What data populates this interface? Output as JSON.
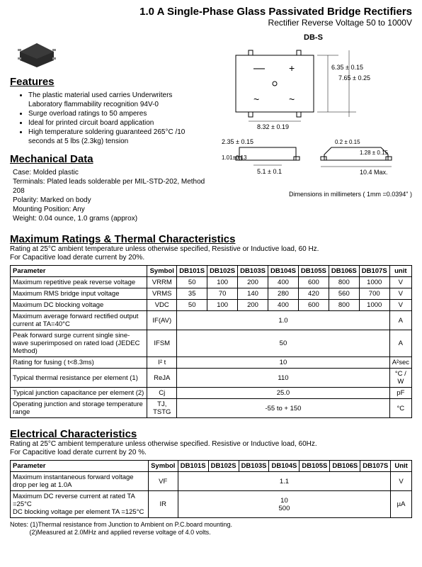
{
  "title": {
    "line1": "1.0  A Single-Phase Glass Passivated Bridge Rectifiers",
    "line2": "Rectifier Reverse Voltage 50 to 1000V"
  },
  "package_label": "DB-S",
  "features": {
    "heading": "Features",
    "items": [
      "The plastic material used carries Underwriters Laboratory flammability recognition 94V-0",
      "Surge overload ratings to 50 amperes",
      "Ideal for printed circuit board application",
      "High temperature soldering guaranteed 265°C /10 seconds at 5 lbs (2.3kg) tension"
    ]
  },
  "mechanical": {
    "heading": "Mechanical Data",
    "case": "Case: Molded plastic",
    "terminals": "Terminals: Plated leads solderable per MIL-STD-202, Method 208",
    "polarity": "Polarity: Marked on body",
    "mounting": "Mounting Position: Any",
    "weight": "Weight: 0.04 ounce, 1.0 grams (approx)"
  },
  "dimensions": {
    "note": "Dimensions in millimeters ( 1mm =0.0394\" )",
    "d1": "6.35 ± 0.15",
    "d2": "7.65 ± 0.25",
    "d3": "8.32 ± 0.19",
    "d4": "2.35 ± 0.15",
    "d5": "1.01 ± 0.13",
    "d6": "5.1 ± 0.1",
    "d7": "0.2 ± 0.15",
    "d8": "1.28 ± 0.15",
    "d9": "10.4 Max."
  },
  "ratings": {
    "heading": "Maximum Ratings & Thermal Characteristics",
    "sub": "Rating at 25°C ambient temperature unless otherwise specified, Resistive or Inductive load, 60 Hz.\nFor Capacitive load derate current by 20%.",
    "columns": [
      "Parameter",
      "Symbol",
      "DB101S",
      "DB102S",
      "DB103S",
      "DB104S",
      "DB105S",
      "DB106S",
      "DB107S",
      "unit"
    ],
    "rows": [
      {
        "param": "Maximum repetitive peak reverse voltage",
        "symbol": "VRRM",
        "vals": [
          "50",
          "100",
          "200",
          "400",
          "600",
          "800",
          "1000"
        ],
        "unit": "V",
        "span": false
      },
      {
        "param": "Maximum RMS bridge input voltage",
        "symbol": "VRMS",
        "vals": [
          "35",
          "70",
          "140",
          "280",
          "420",
          "560",
          "700"
        ],
        "unit": "V",
        "span": false
      },
      {
        "param": "Maximum DC blocking voltage",
        "symbol": "VDC",
        "vals": [
          "50",
          "100",
          "200",
          "400",
          "600",
          "800",
          "1000"
        ],
        "unit": "V",
        "span": false
      },
      {
        "param": "Maximum average forward rectified output current at TA=40°C",
        "symbol": "IF(AV)",
        "vals": [
          "1.0"
        ],
        "unit": "A",
        "span": true
      },
      {
        "param": "Peak forward surge current single sine-wave superimposed on rated load (JEDEC Method)",
        "symbol": "IFSM",
        "vals": [
          "50"
        ],
        "unit": "A",
        "span": true
      },
      {
        "param": "Rating for fusing ( t<8.3ms)",
        "symbol": "I² t",
        "vals": [
          "10"
        ],
        "unit": "A²sec",
        "span": true
      },
      {
        "param": "Typical  thermal resistance per element (1)",
        "symbol": "ReJA",
        "vals": [
          "110"
        ],
        "unit": "°C / W",
        "span": true
      },
      {
        "param": "Typical junction capacitance per element (2)",
        "symbol": "Cj",
        "vals": [
          "25.0"
        ],
        "unit": "pF",
        "span": true
      },
      {
        "param": "Operating junction and storage temperature range",
        "symbol": "TJ, TSTG",
        "vals": [
          "-55 to + 150"
        ],
        "unit": "°C",
        "span": true
      }
    ]
  },
  "electrical": {
    "heading": "Electrical Characteristics",
    "sub": "Rating at 25°C ambient temperature unless otherwise specified. Resistive or Inductive load, 60Hz.\nFor Capacitive load derate current by 20 %.",
    "columns": [
      "Parameter",
      "Symbol",
      "DB101S",
      "DB102S",
      "DB103S",
      "DB104S",
      "DB105S",
      "DB106S",
      "DB107S",
      "Unit"
    ],
    "rows": [
      {
        "param": "Maximum instantaneous forward voltage drop per leg at 1.0A",
        "symbol": "VF",
        "vals": [
          "1.1"
        ],
        "unit": "V",
        "span": true
      },
      {
        "param": "Maximum DC reverse current at rated  TA =25°C\nDC blocking voltage per element       TA =125°C",
        "symbol": "IR",
        "vals": [
          "10\n500"
        ],
        "unit": "µA",
        "span": true
      }
    ]
  },
  "notes": {
    "text": "Notes: (1)Thermal resistance from Junction to Ambient on P.C.board mounting.\n           (2)Measured at 2.0MHz and applied reverse voltage of 4.0 volts."
  }
}
